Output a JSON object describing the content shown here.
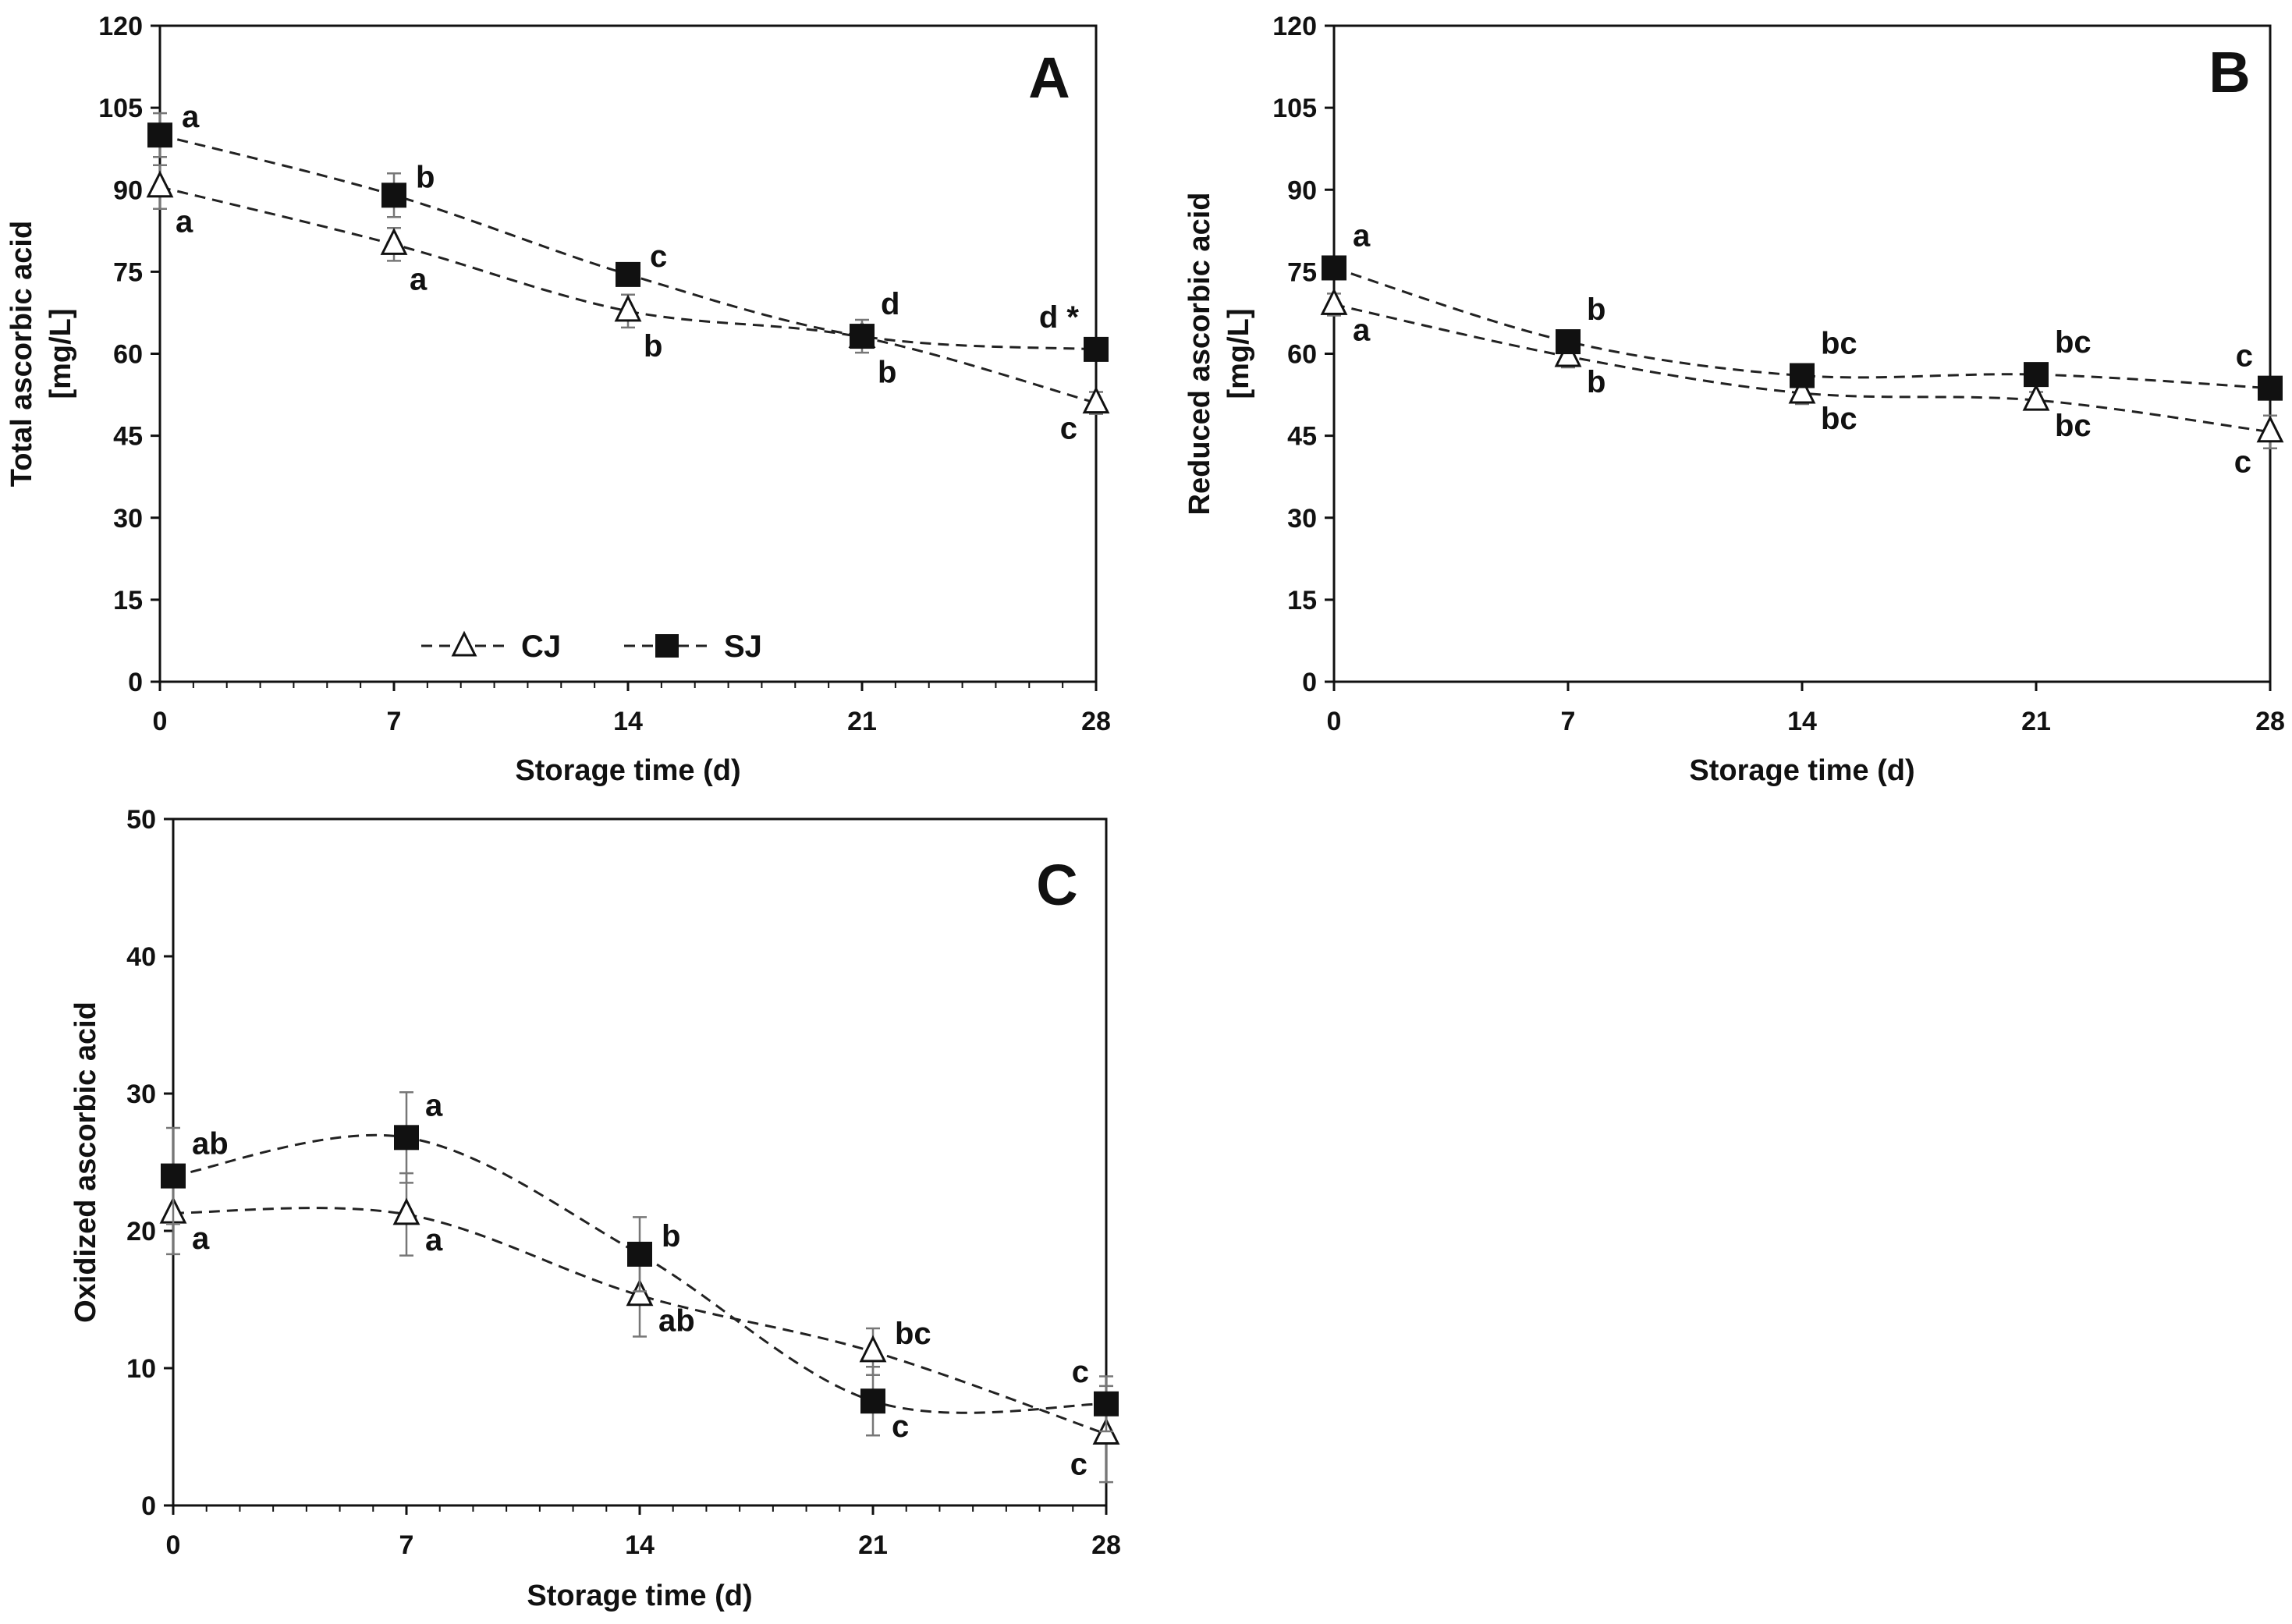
{
  "chart_data": [
    {
      "type": "line",
      "panel_label": "A",
      "title": "",
      "xlabel": "Storage time (d)",
      "ylabel": "Total ascorbic acid",
      "yunit": "[mg/L]",
      "x": [
        0,
        7,
        14,
        21,
        28
      ],
      "xticks": [
        "0",
        "7",
        "14",
        "21",
        "28"
      ],
      "ylim": [
        0,
        120
      ],
      "yticks": [
        "0",
        "15",
        "30",
        "45",
        "60",
        "75",
        "90",
        "105",
        "120"
      ],
      "legend": {
        "position": "bottom-left",
        "entries": [
          "CJ",
          "SJ"
        ]
      },
      "series": [
        {
          "name": "CJ",
          "marker": "open-triangle",
          "values": [
            90.5,
            80,
            67.8,
            63,
            51
          ],
          "errors": [
            4,
            3,
            3,
            1.5,
            2
          ],
          "labels": [
            "a",
            "a",
            "b",
            "b",
            "c"
          ],
          "label_pos": [
            "below",
            "below",
            "below",
            "below",
            "left"
          ]
        },
        {
          "name": "SJ",
          "marker": "filled-square",
          "values": [
            100,
            89,
            74.5,
            63.2,
            60.8
          ],
          "errors": [
            4,
            4,
            2,
            3,
            2
          ],
          "labels": [
            "a",
            "b",
            "c",
            "d",
            "d *"
          ],
          "label_pos": [
            "right",
            "right",
            "right",
            "above-right",
            "above-left"
          ]
        }
      ]
    },
    {
      "type": "line",
      "panel_label": "B",
      "title": "",
      "xlabel": "Storage time (d)",
      "ylabel": "Reduced ascorbic acid",
      "yunit": "[mg/L]",
      "x": [
        0,
        7,
        14,
        21,
        28
      ],
      "xticks": [
        "0",
        "7",
        "14",
        "21",
        "28"
      ],
      "ylim": [
        0,
        120
      ],
      "yticks": [
        "0",
        "15",
        "30",
        "45",
        "60",
        "75",
        "90",
        "105",
        "120"
      ],
      "series": [
        {
          "name": "CJ",
          "marker": "open-triangle",
          "values": [
            69,
            59.5,
            52.8,
            51.5,
            45.7
          ],
          "errors": [
            2,
            2,
            2,
            1.5,
            3
          ],
          "labels": [
            "a",
            "b",
            "bc",
            "bc",
            "c"
          ],
          "label_pos": [
            "right-low",
            "right-low",
            "right-low",
            "right-low",
            "left-low"
          ]
        },
        {
          "name": "SJ",
          "marker": "filled-square",
          "values": [
            75.7,
            62.2,
            56,
            56.2,
            53.7
          ],
          "errors": [
            2,
            2,
            2,
            1.5,
            2
          ],
          "labels": [
            "a",
            "b",
            "bc",
            "bc",
            "c"
          ],
          "label_pos": [
            "above-right",
            "above-right",
            "above-right",
            "above-right",
            "above-left"
          ]
        }
      ]
    },
    {
      "type": "line",
      "panel_label": "C",
      "title": "",
      "xlabel": "Storage time (d)",
      "ylabel": "Oxidized ascorbic acid",
      "yunit": "",
      "x": [
        0,
        7,
        14,
        21,
        28
      ],
      "xticks": [
        "0",
        "7",
        "14",
        "21",
        "28"
      ],
      "ylim": [
        0,
        50
      ],
      "yticks": [
        "0",
        "10",
        "20",
        "30",
        "40",
        "50"
      ],
      "series": [
        {
          "name": "CJ",
          "marker": "open-triangle",
          "values": [
            21.3,
            21.2,
            15.3,
            11.2,
            5.2
          ],
          "errors": [
            3,
            3,
            3,
            1.7,
            3.5
          ],
          "labels": [
            "a",
            "a",
            "ab",
            "bc",
            "c"
          ],
          "label_pos": [
            "right-low",
            "right-low",
            "right-low",
            "right",
            "left-low"
          ]
        },
        {
          "name": "SJ",
          "marker": "filled-square",
          "values": [
            24,
            26.8,
            18.3,
            7.6,
            7.4
          ],
          "errors": [
            3.5,
            3.3,
            2.7,
            2.5,
            2
          ],
          "labels": [
            "ab",
            "a",
            "b",
            "c",
            "c"
          ],
          "label_pos": [
            "above-right",
            "above-right",
            "right",
            "right-low",
            "above-left"
          ]
        }
      ]
    }
  ]
}
